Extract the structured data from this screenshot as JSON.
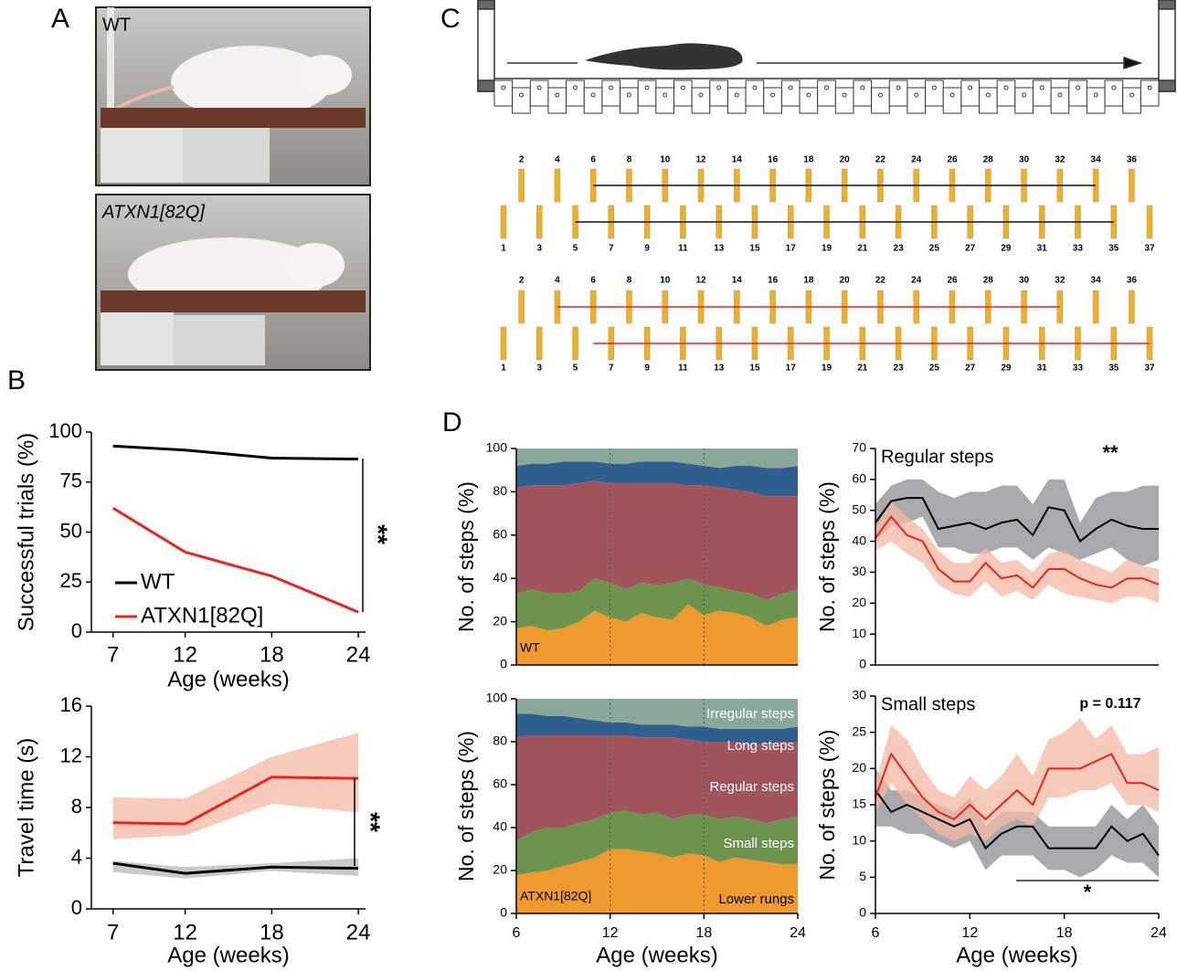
{
  "panels": [
    "A",
    "B",
    "C",
    "D"
  ],
  "photo_labels": [
    "WT",
    "ATXN1[82Q]"
  ],
  "rungs": {
    "top": [
      2,
      4,
      6,
      8,
      10,
      12,
      14,
      16,
      18,
      20,
      22,
      24,
      26,
      28,
      30,
      32,
      34,
      36
    ],
    "bottom": [
      1,
      3,
      5,
      7,
      9,
      11,
      13,
      15,
      17,
      19,
      21,
      23,
      25,
      27,
      29,
      31,
      33,
      35,
      37
    ]
  },
  "chart_data": [
    {
      "type": "line",
      "ylabel": "Successful trials (%)",
      "xlabel": "Age (weeks)",
      "x": [
        7,
        12,
        18,
        24
      ],
      "xlim": [
        5.5,
        24.5
      ],
      "xticks": [
        7,
        12,
        18,
        24
      ],
      "ylim": [
        0,
        100
      ],
      "yticks": [
        0,
        25,
        50,
        75,
        100
      ],
      "series": [
        {
          "name": "WT",
          "color": "#000000",
          "values": [
            93,
            91,
            87,
            86.5
          ]
        },
        {
          "name": "ATXN1[82Q]",
          "color": "#e8251c",
          "values": [
            62,
            40,
            28,
            10
          ]
        }
      ],
      "legend": "lower left",
      "annotations": [
        "**"
      ]
    },
    {
      "type": "line",
      "ylabel": "Travel time (s)",
      "xlabel": "Age (weeks)",
      "x": [
        7,
        12,
        18,
        24
      ],
      "xlim": [
        5.5,
        24.5
      ],
      "xticks": [
        7,
        12,
        18,
        24
      ],
      "ylim": [
        0,
        16
      ],
      "yticks": [
        0,
        4,
        8,
        12,
        16
      ],
      "series": [
        {
          "color": "#e8251c",
          "band_color": "#f6b8a4",
          "values": [
            6.8,
            6.7,
            10.4,
            10.3
          ],
          "lower": [
            5.5,
            5.8,
            8.3,
            7.6
          ],
          "upper": [
            8.8,
            8.7,
            12,
            13.9
          ]
        },
        {
          "color": "#000000",
          "band_color": "#b8b8bc",
          "values": [
            3.6,
            2.8,
            3.3,
            3.2
          ],
          "lower": [
            2.9,
            2.4,
            3.0,
            2.6
          ],
          "upper": [
            3.8,
            3.3,
            3.6,
            4.0
          ]
        }
      ],
      "annotations": [
        "**"
      ]
    },
    {
      "type": "area",
      "stacked": true,
      "ylabel": "No. of steps (%)",
      "label": "WT",
      "x": [
        6,
        7,
        8,
        9,
        10,
        11,
        12,
        13,
        14,
        15,
        16,
        17,
        18,
        19,
        20,
        21,
        22,
        23,
        24
      ],
      "xlim": [
        6,
        24
      ],
      "ylim": [
        0,
        100
      ],
      "yticks": [
        0,
        20,
        40,
        60,
        80,
        100
      ],
      "vlines": [
        12,
        18
      ],
      "series": [
        {
          "color": "#ee9a2e",
          "values": [
            17,
            18,
            16,
            17,
            20,
            25,
            22,
            20,
            24,
            22,
            21,
            28,
            23,
            25,
            24,
            22,
            18,
            21,
            22
          ]
        },
        {
          "color": "#6c944c",
          "values": [
            16,
            17,
            17,
            16,
            14,
            15,
            16,
            15,
            14,
            15,
            17,
            12,
            14,
            11,
            10,
            11,
            12,
            12,
            13
          ]
        },
        {
          "color": "#a0545c",
          "values": [
            49,
            48,
            50,
            50,
            50,
            45,
            46,
            49,
            46,
            47,
            46,
            43,
            46,
            46,
            47,
            47,
            48,
            45,
            43
          ]
        },
        {
          "color": "#2e5f8e",
          "values": [
            10,
            10,
            10,
            11,
            10,
            9,
            9,
            9,
            10,
            10,
            10,
            10,
            9,
            9,
            11,
            12,
            13,
            13,
            14
          ]
        },
        {
          "color": "#8aa898",
          "values": [
            8,
            7,
            7,
            6,
            6,
            6,
            7,
            7,
            6,
            6,
            6,
            7,
            8,
            9,
            8,
            8,
            9,
            9,
            8
          ]
        }
      ]
    },
    {
      "type": "area",
      "stacked": true,
      "ylabel": "No. of steps (%)",
      "xlabel": "Age (weeks)",
      "label": "ATXN1[82Q]",
      "x": [
        6,
        7,
        8,
        9,
        10,
        11,
        12,
        13,
        14,
        15,
        16,
        17,
        18,
        19,
        20,
        21,
        22,
        23,
        24
      ],
      "xlim": [
        6,
        24
      ],
      "xticks": [
        6,
        12,
        18,
        24
      ],
      "ylim": [
        0,
        100
      ],
      "yticks": [
        0,
        20,
        40,
        60,
        80,
        100
      ],
      "vlines": [
        12,
        18
      ],
      "series": [
        {
          "name": "Lower rungs",
          "color": "#ee9a2e",
          "values": [
            18,
            19,
            20,
            22,
            24,
            26,
            30,
            30,
            29,
            28,
            26,
            28,
            27,
            24,
            26,
            25,
            24,
            23,
            23
          ]
        },
        {
          "name": "Small steps",
          "color": "#6c944c",
          "values": [
            16,
            19,
            20,
            18,
            18,
            18,
            17,
            18,
            17,
            19,
            18,
            18,
            19,
            20,
            19,
            19,
            18,
            21,
            22
          ]
        },
        {
          "name": "Regular steps",
          "color": "#a0545c",
          "values": [
            48,
            45,
            43,
            43,
            41,
            39,
            36,
            35,
            36,
            35,
            38,
            35,
            34,
            36,
            35,
            35,
            37,
            36,
            35
          ]
        },
        {
          "name": "Long steps",
          "color": "#2e5f8e",
          "values": [
            11,
            10,
            9,
            9,
            8,
            7,
            6,
            6,
            6,
            6,
            6,
            6,
            7,
            6,
            6,
            7,
            7,
            6,
            7
          ]
        },
        {
          "name": "Irregular steps",
          "color": "#8aa898",
          "values": [
            7,
            7,
            8,
            8,
            9,
            10,
            11,
            11,
            12,
            12,
            12,
            13,
            13,
            14,
            14,
            14,
            14,
            14,
            13
          ]
        }
      ]
    },
    {
      "type": "line",
      "title": "Regular steps",
      "ylabel": "No. of steps (%)",
      "x": [
        6,
        7,
        8,
        9,
        10,
        11,
        12,
        13,
        14,
        15,
        16,
        17,
        18,
        19,
        20,
        21,
        22,
        23,
        24
      ],
      "xlim": [
        6,
        24
      ],
      "ylim": [
        0,
        70
      ],
      "yticks": [
        0,
        10,
        20,
        30,
        40,
        50,
        60,
        70
      ],
      "series": [
        {
          "color": "#000000",
          "band_color": "#8e8e92",
          "values": [
            46,
            53,
            54,
            54,
            44,
            45,
            46,
            44,
            46,
            47,
            42,
            51,
            50,
            40,
            44,
            47,
            45,
            44,
            44
          ],
          "lower": [
            40,
            45,
            46,
            48,
            38,
            38,
            36,
            36,
            38,
            38,
            34,
            38,
            36,
            34,
            36,
            38,
            34,
            32,
            34
          ],
          "upper": [
            52,
            58,
            60,
            60,
            56,
            54,
            56,
            56,
            58,
            58,
            52,
            60,
            60,
            46,
            54,
            56,
            56,
            58,
            58
          ]
        },
        {
          "color": "#e8251c",
          "band_color": "#f6b8a4",
          "values": [
            41,
            48,
            42,
            40,
            31,
            27,
            27,
            33,
            28,
            29,
            25,
            31,
            31,
            28,
            26,
            25,
            28,
            28,
            26
          ],
          "lower": [
            37,
            40,
            36,
            33,
            26,
            23,
            22,
            27,
            22,
            24,
            21,
            26,
            23,
            22,
            21,
            20,
            22,
            22,
            20
          ],
          "upper": [
            44,
            53,
            48,
            44,
            37,
            33,
            33,
            38,
            33,
            34,
            30,
            36,
            37,
            34,
            32,
            30,
            34,
            32,
            31
          ]
        }
      ],
      "annotations": [
        "**"
      ]
    },
    {
      "type": "line",
      "title": "Small steps",
      "ylabel": "No. of steps (%)",
      "xlabel": "Age (weeks)",
      "x": [
        6,
        7,
        8,
        9,
        10,
        11,
        12,
        13,
        14,
        15,
        16,
        17,
        18,
        19,
        20,
        21,
        22,
        23,
        24
      ],
      "xlim": [
        6,
        24
      ],
      "xticks": [
        6,
        12,
        18,
        24
      ],
      "ylim": [
        0,
        30
      ],
      "yticks": [
        0,
        5,
        10,
        15,
        20,
        25,
        30
      ],
      "series": [
        {
          "color": "#000000",
          "band_color": "#8e8e92",
          "values": [
            17,
            14,
            15,
            14,
            13,
            12,
            13,
            9,
            11,
            12,
            12,
            9,
            9,
            9,
            9,
            12,
            10,
            11,
            8
          ],
          "lower": [
            12,
            12,
            11,
            11,
            10,
            9,
            10,
            6,
            8,
            8,
            8,
            6,
            6,
            5,
            6,
            8,
            7,
            7,
            5
          ],
          "upper": [
            20,
            17,
            17,
            16,
            15,
            14,
            16,
            12,
            14,
            14,
            14,
            12,
            12,
            12,
            12,
            15,
            13,
            15,
            12
          ]
        },
        {
          "color": "#e8251c",
          "band_color": "#f6b8a4",
          "values": [
            16,
            22,
            19,
            16,
            14,
            13,
            15,
            13,
            15,
            17,
            15,
            20,
            20,
            20,
            21,
            22,
            18,
            18,
            17
          ],
          "lower": [
            14,
            18,
            15,
            13,
            11,
            10,
            11,
            10,
            12,
            13,
            12,
            16,
            16,
            17,
            17,
            18,
            15,
            15,
            14
          ],
          "upper": [
            18,
            26,
            24,
            20,
            17,
            16,
            19,
            17,
            19,
            22,
            19,
            24,
            25,
            27,
            24,
            26,
            22,
            22,
            23
          ]
        }
      ],
      "annotations": [
        "p = 0.117",
        "*"
      ]
    }
  ]
}
